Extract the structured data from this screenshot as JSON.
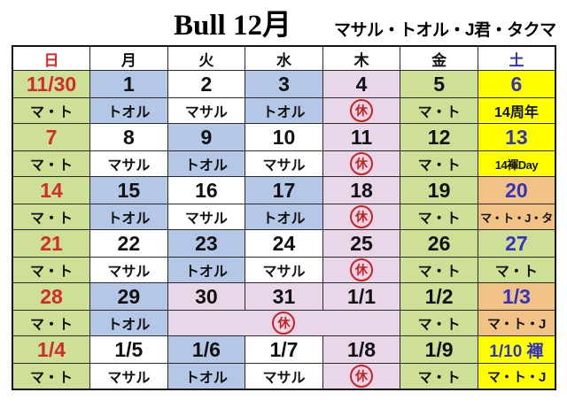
{
  "title": "Bull 12月",
  "subtitle": "マサル・トオル・J君・タクマ",
  "stamp_label": "休",
  "colors": {
    "green": "#cde096",
    "blue": "#b4c7e7",
    "pink": "#e9d6e9",
    "yellow": "#ffff00",
    "orange": "#f0c285",
    "white": "#ffffff",
    "red_text": "#d22b2b",
    "blue_text": "#3333bf",
    "black_text": "#111111",
    "stamp_red": "#cc2020"
  },
  "weekday_header": [
    {
      "label": "日",
      "color": "red"
    },
    {
      "label": "月",
      "color": "black"
    },
    {
      "label": "火",
      "color": "black"
    },
    {
      "label": "水",
      "color": "black"
    },
    {
      "label": "木",
      "color": "black"
    },
    {
      "label": "金",
      "color": "black"
    },
    {
      "label": "土",
      "color": "blue"
    }
  ],
  "weeks": [
    {
      "days": [
        {
          "date": "11/30",
          "date_color": "red",
          "bg": "green",
          "staff": "マ・ト"
        },
        {
          "date": "1",
          "bg": "blue",
          "staff": "トオル"
        },
        {
          "date": "2",
          "bg": "white",
          "staff": "マサル"
        },
        {
          "date": "3",
          "bg": "blue",
          "staff": "トオル"
        },
        {
          "date": "4",
          "bg": "pink",
          "staff_stamp": true
        },
        {
          "date": "5",
          "bg": "green",
          "staff": "マ・ト"
        },
        {
          "date": "6",
          "date_color": "blue",
          "bg": "yellow",
          "staff": "14周年"
        }
      ]
    },
    {
      "days": [
        {
          "date": "7",
          "date_color": "red",
          "bg": "green",
          "staff": "マ・ト"
        },
        {
          "date": "8",
          "bg": "white",
          "staff": "マサル"
        },
        {
          "date": "9",
          "bg": "blue",
          "staff": "トオル"
        },
        {
          "date": "10",
          "bg": "white",
          "staff": "マサル"
        },
        {
          "date": "11",
          "bg": "pink",
          "staff_stamp": true
        },
        {
          "date": "12",
          "bg": "green",
          "staff": "マ・ト"
        },
        {
          "date": "13",
          "date_color": "blue",
          "bg": "yellow",
          "staff": "14褌Day"
        }
      ]
    },
    {
      "days": [
        {
          "date": "14",
          "date_color": "red",
          "bg": "green",
          "staff": "マ・ト"
        },
        {
          "date": "15",
          "bg": "blue",
          "staff": "トオル"
        },
        {
          "date": "16",
          "bg": "white",
          "staff": "マサル"
        },
        {
          "date": "17",
          "bg": "blue",
          "staff": "トオル"
        },
        {
          "date": "18",
          "bg": "pink",
          "staff_stamp": true
        },
        {
          "date": "19",
          "bg": "green",
          "staff": "マ・ト"
        },
        {
          "date": "20",
          "date_color": "blue",
          "bg": "orange",
          "staff": "マ・ト・J・タ"
        }
      ]
    },
    {
      "days": [
        {
          "date": "21",
          "date_color": "red",
          "bg": "green",
          "staff": "マ・ト"
        },
        {
          "date": "22",
          "bg": "white",
          "staff": "マサル"
        },
        {
          "date": "23",
          "bg": "blue",
          "staff": "トオル"
        },
        {
          "date": "24",
          "bg": "white",
          "staff": "マサル"
        },
        {
          "date": "25",
          "bg": "pink",
          "staff_stamp": true
        },
        {
          "date": "26",
          "bg": "green",
          "staff": "マ・ト"
        },
        {
          "date": "27",
          "date_color": "blue",
          "bg": "green",
          "staff": "マ・ト"
        }
      ]
    },
    {
      "days": [
        {
          "date": "28",
          "date_color": "red",
          "bg": "green",
          "staff": "マ・ト"
        },
        {
          "date": "29",
          "bg": "blue",
          "staff": "トオル"
        },
        {
          "date": "30",
          "bg": "pink",
          "staff_stamp": true,
          "staff_colspan": 3
        },
        {
          "date": "31",
          "bg": "pink",
          "staff_skip": true
        },
        {
          "date": "1/1",
          "bg": "pink",
          "staff_skip": true
        },
        {
          "date": "1/2",
          "bg": "green",
          "staff": "マ・ト"
        },
        {
          "date": "1/3",
          "date_color": "blue",
          "bg": "orange",
          "staff": "マ・ト・J"
        }
      ]
    },
    {
      "days": [
        {
          "date": "1/4",
          "date_color": "red",
          "bg": "green",
          "staff": "マ・ト"
        },
        {
          "date": "1/5",
          "bg": "white",
          "staff": "マサル"
        },
        {
          "date": "1/6",
          "bg": "blue",
          "staff": "トオル"
        },
        {
          "date": "1/7",
          "bg": "white",
          "staff": "マサル"
        },
        {
          "date": "1/8",
          "bg": "pink",
          "staff_stamp": true
        },
        {
          "date": "1/9",
          "bg": "green",
          "staff": "マ・ト"
        },
        {
          "date": "1/10 褌",
          "date_color": "blue",
          "bg": "yellow",
          "staff": "マ・ト・J"
        }
      ]
    }
  ]
}
